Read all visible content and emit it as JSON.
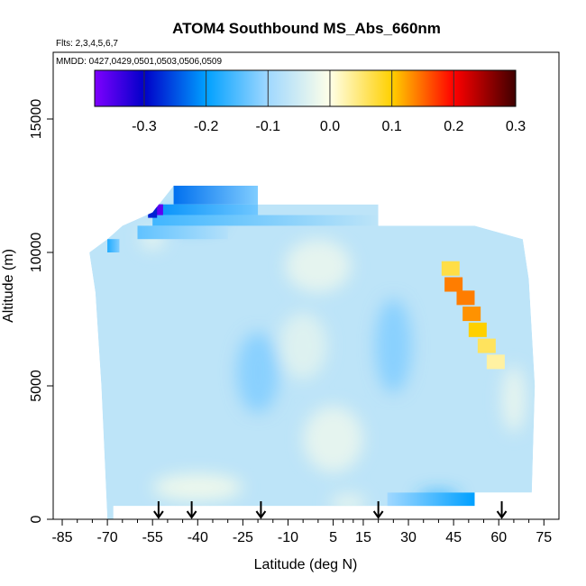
{
  "chart_data": {
    "type": "heatmap",
    "title": "ATOM4 Southbound MS_Abs_660nm",
    "subtitle_flights": "Flts: 2,3,4,5,6,7",
    "subtitle_dates": "MMDD: 0427,0429,0501,0503,0506,0509",
    "xlabel": "Latitude (deg N)",
    "ylabel": "Altitude (m)",
    "xlim": [
      -88,
      80
    ],
    "ylim": [
      0,
      17500
    ],
    "x_ticks": [
      -85,
      -70,
      -55,
      -40,
      -25,
      -10,
      5,
      15,
      30,
      45,
      60,
      75
    ],
    "x_tick_labels": [
      "-85",
      "-70",
      "-55",
      "-40",
      "-25",
      "-10",
      "5",
      "15",
      "30",
      "45",
      "60",
      "75"
    ],
    "y_ticks": [
      0,
      5000,
      10000,
      15000
    ],
    "y_tick_labels": [
      "0",
      "5000",
      "10000",
      "15000"
    ],
    "colorbar": {
      "min": -0.38,
      "max": 0.3,
      "tick_values": [
        -0.3,
        -0.2,
        -0.1,
        0.0,
        0.1,
        0.2,
        0.3
      ],
      "tick_labels": [
        "-0.3",
        "-0.2",
        "-0.1",
        "0.0",
        "0.1",
        "0.2",
        "0.3"
      ],
      "color_stops": [
        {
          "value": -0.38,
          "color": "#7f00ff"
        },
        {
          "value": -0.3,
          "color": "#0000c8"
        },
        {
          "value": -0.2,
          "color": "#00a0ff"
        },
        {
          "value": -0.1,
          "color": "#a0d8ff"
        },
        {
          "value": 0.0,
          "color": "#ffffe8"
        },
        {
          "value": 0.1,
          "color": "#ffd000"
        },
        {
          "value": 0.2,
          "color": "#ff0000"
        },
        {
          "value": 0.3,
          "color": "#400000"
        }
      ]
    },
    "background_value": -0.07,
    "field_polygon": [
      [
        -70,
        0
      ],
      [
        -72,
        5000
      ],
      [
        -74,
        8500
      ],
      [
        -76,
        10000
      ],
      [
        -70,
        10500
      ],
      [
        -65,
        11000
      ],
      [
        -55,
        11500
      ],
      [
        -48,
        12500
      ],
      [
        -20,
        12500
      ],
      [
        -20,
        11800
      ],
      [
        20,
        11800
      ],
      [
        20,
        11000
      ],
      [
        52,
        11000
      ],
      [
        68,
        10500
      ],
      [
        70,
        9000
      ],
      [
        72,
        5000
      ],
      [
        71,
        1000
      ],
      [
        52,
        1000
      ],
      [
        52,
        500
      ],
      [
        -68,
        500
      ],
      [
        -68,
        0
      ]
    ],
    "features": [
      {
        "lat": 0,
        "alt": 9500,
        "w": 22,
        "h": 2000,
        "v": -0.02
      },
      {
        "lat": -5,
        "alt": 6500,
        "w": 16,
        "h": 2500,
        "v": -0.03
      },
      {
        "lat": 5,
        "alt": 3000,
        "w": 20,
        "h": 2500,
        "v": -0.02
      },
      {
        "lat": -40,
        "alt": 1200,
        "w": 30,
        "h": 1000,
        "v": -0.01
      },
      {
        "lat": 10,
        "alt": 600,
        "w": 12,
        "h": 700,
        "v": -0.02
      },
      {
        "lat": 65,
        "alt": 4500,
        "w": 8,
        "h": 2500,
        "v": -0.02
      },
      {
        "lat": -55,
        "alt": 10500,
        "w": 8,
        "h": 800,
        "v": -0.02
      },
      {
        "lat": -20,
        "alt": 5500,
        "w": 14,
        "h": 3000,
        "v": -0.12
      },
      {
        "lat": 25,
        "alt": 6500,
        "w": 12,
        "h": 3500,
        "v": -0.12
      },
      {
        "lat": -42,
        "alt": 11200,
        "w": 20,
        "h": 500,
        "v": -0.18
      },
      {
        "lat": 40,
        "alt": 800,
        "w": 14,
        "h": 500,
        "v": -0.17
      }
    ],
    "layers": [
      {
        "lat_from": -48,
        "lat_to": -20,
        "alt_from": 11800,
        "alt_to": 12500,
        "v_from": -0.23,
        "v_to": -0.12
      },
      {
        "lat_from": -55,
        "lat_to": -20,
        "alt_from": 11400,
        "alt_to": 11800,
        "v_from": -0.21,
        "v_to": -0.13
      },
      {
        "lat_from": -55,
        "lat_to": 20,
        "alt_from": 11000,
        "alt_to": 11400,
        "v_from": -0.16,
        "v_to": -0.07
      },
      {
        "lat_from": -60,
        "lat_to": -30,
        "alt_from": 10500,
        "alt_to": 11000,
        "v_from": -0.14,
        "v_to": -0.08
      },
      {
        "lat_from": -70,
        "lat_to": -66,
        "alt_from": 10000,
        "alt_to": 10500,
        "v_from": -0.18,
        "v_to": -0.12
      },
      {
        "lat_from": 23,
        "lat_to": 52,
        "alt_from": 500,
        "alt_to": 1000,
        "v_from": -0.1,
        "v_to": -0.2
      }
    ],
    "hotspots": [
      {
        "lat": -53,
        "alt": 11600,
        "v": -0.36
      },
      {
        "lat": -55,
        "alt": 11500,
        "v": -0.28
      }
    ],
    "plume": [
      {
        "lat": 44,
        "alt": 9400,
        "v": 0.07
      },
      {
        "lat": 45,
        "alt": 8800,
        "v": 0.14
      },
      {
        "lat": 49,
        "alt": 8300,
        "v": 0.14
      },
      {
        "lat": 51,
        "alt": 7700,
        "v": 0.13
      },
      {
        "lat": 53,
        "alt": 7100,
        "v": 0.1
      },
      {
        "lat": 56,
        "alt": 6500,
        "v": 0.06
      },
      {
        "lat": 59,
        "alt": 5900,
        "v": 0.03
      }
    ],
    "arrows_lat": [
      -53,
      -42,
      -19,
      20,
      61
    ]
  }
}
